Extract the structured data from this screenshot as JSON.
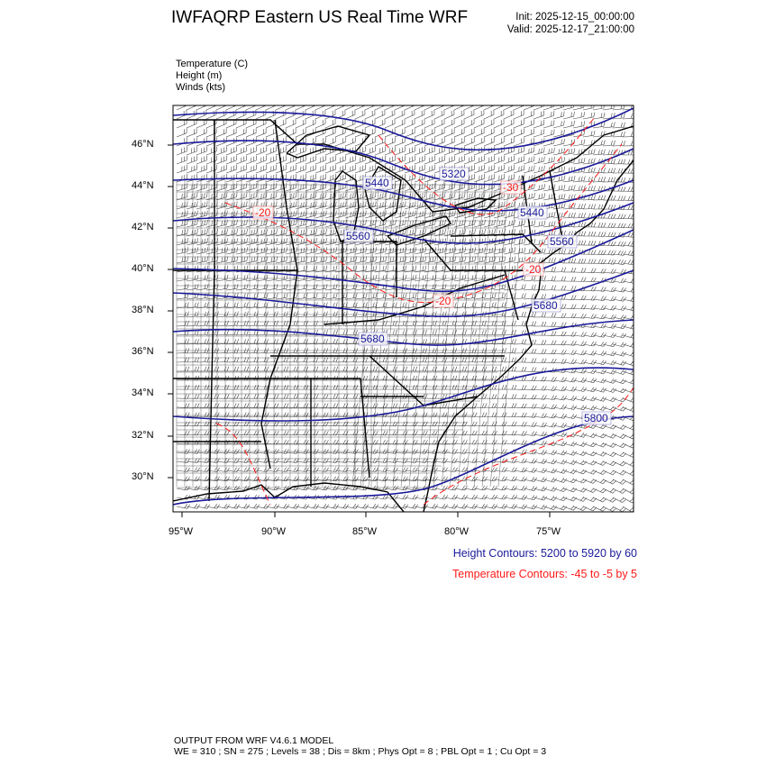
{
  "header": {
    "title": "IWFAQRP Eastern US Real Time WRF",
    "init": "Init: 2025-12-15_00:00:00",
    "valid": "Valid: 2025-12-17_21:00:00"
  },
  "fields": [
    "Temperature   (C)",
    "Height   (m)",
    "Winds   (kts)"
  ],
  "axes": {
    "lat_labels": [
      "46°N",
      "44°N",
      "42°N",
      "40°N",
      "38°N",
      "36°N",
      "34°N",
      "32°N",
      "30°N"
    ],
    "lon_labels": [
      "95°W",
      "90°W",
      "85°W",
      "80°W",
      "75°W"
    ]
  },
  "height_labels": [
    "5320",
    "5440",
    "5440",
    "5560",
    "5560",
    "5680",
    "5680",
    "5800"
  ],
  "temp_labels": [
    "-20",
    "-30",
    "-20",
    "-20"
  ],
  "legend": {
    "height": "Height Contours: 5200 to 5920 by 60",
    "temperature": "Temperature Contours: -45 to -5 by 5"
  },
  "footer": {
    "line1": "OUTPUT FROM WRF V4.6.1 MODEL",
    "line2": "WE = 310 ; SN = 275 ; Levels = 38 ; Dis = 8km ; Phys Opt = 8 ; PBL Opt = 1 ; Cu Opt = 3"
  },
  "colors": {
    "height": "#1a1a9a",
    "temperature": "#ff1a1a",
    "map": "#000000"
  },
  "icons": {
    "wind": "wind-barb-icon"
  }
}
